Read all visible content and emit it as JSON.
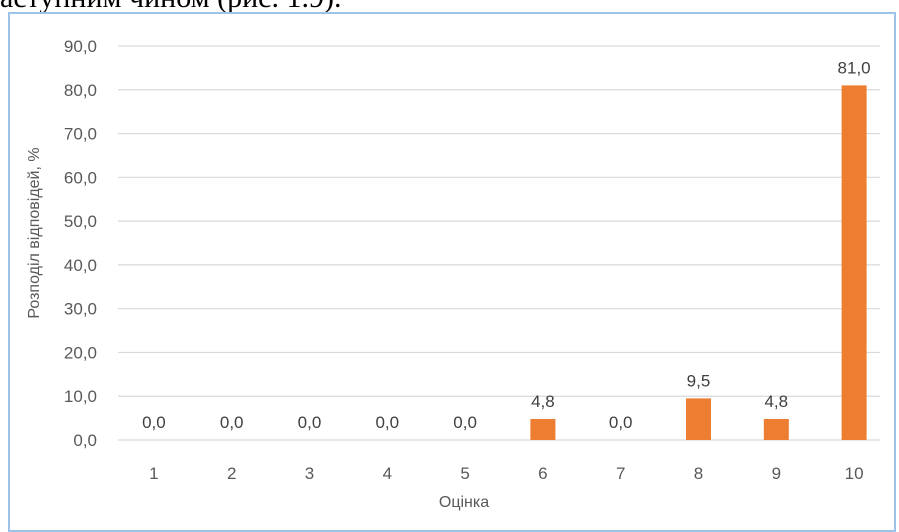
{
  "page": {
    "top_text": "аступним чином (рис. 1.9)."
  },
  "chart_data": {
    "type": "bar",
    "categories": [
      "1",
      "2",
      "3",
      "4",
      "5",
      "6",
      "7",
      "8",
      "9",
      "10"
    ],
    "values": [
      0.0,
      0.0,
      0.0,
      0.0,
      0.0,
      4.8,
      0.0,
      9.5,
      4.8,
      81.0
    ],
    "data_labels": [
      "0,0",
      "0,0",
      "0,0",
      "0,0",
      "0,0",
      "4,8",
      "0,0",
      "9,5",
      "4,8",
      "81,0"
    ],
    "title": "",
    "xlabel": "Оцінка",
    "ylabel": "Розподіл відповідей, %",
    "ylim": [
      0,
      90
    ],
    "yticks": [
      0,
      10,
      20,
      30,
      40,
      50,
      60,
      70,
      80,
      90
    ],
    "ytick_labels": [
      "0,0",
      "10,0",
      "20,0",
      "30,0",
      "40,0",
      "50,0",
      "60,0",
      "70,0",
      "80,0",
      "90,0"
    ],
    "grid": true,
    "legend": "none",
    "colors": {
      "bar": "#ed7d31",
      "grid": "#d9d9d9",
      "frame": "#9dc3e6"
    }
  }
}
